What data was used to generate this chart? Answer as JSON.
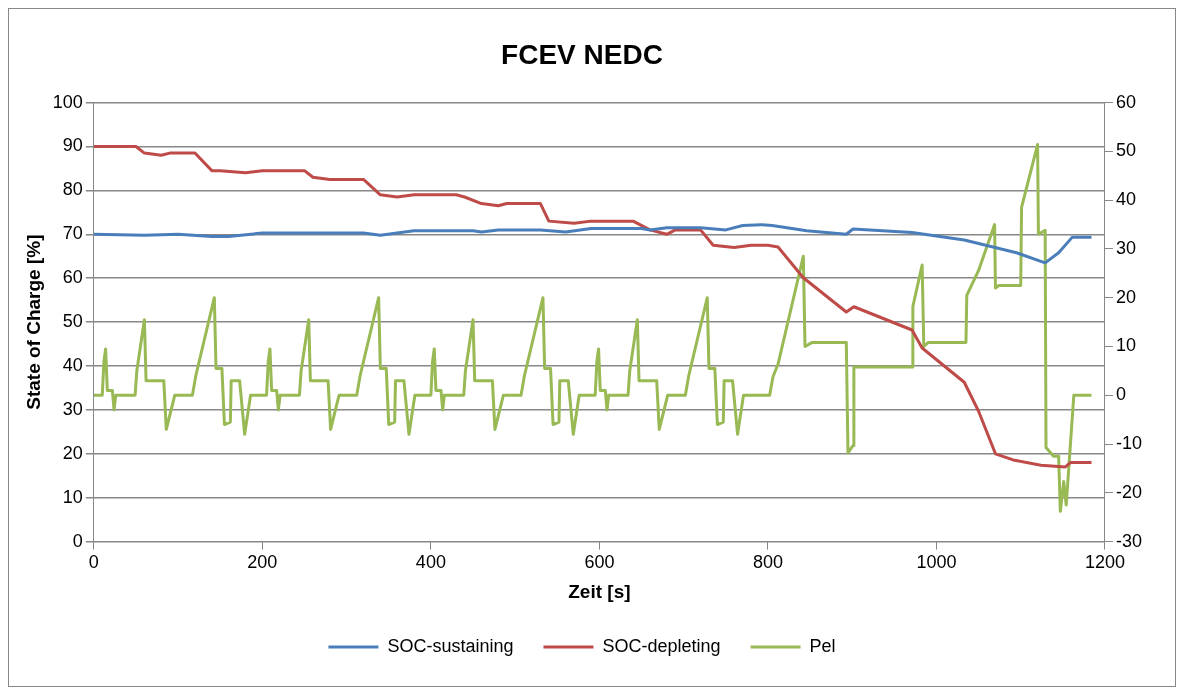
{
  "chart_data": {
    "type": "line",
    "title": "FCEV NEDC",
    "xlabel": "Zeit [s]",
    "ylabel": "State of Charge [%]",
    "xlim": [
      0,
      1200
    ],
    "xticks": [
      0,
      200,
      400,
      600,
      800,
      1000,
      1200
    ],
    "ylim": [
      0,
      100
    ],
    "yticks": [
      0,
      10,
      20,
      30,
      40,
      50,
      60,
      70,
      80,
      90,
      100
    ],
    "y2lim": [
      -30,
      60
    ],
    "y2ticks": [
      -30,
      -20,
      -10,
      0,
      10,
      20,
      30,
      40,
      50,
      60
    ],
    "grid": "y",
    "legend": "bottom",
    "marker": "none",
    "line_style": "solid",
    "series": [
      {
        "name": "SOC-sustaining",
        "color": "#4a7ebb",
        "x": [
          0,
          60,
          100,
          140,
          160,
          200,
          320,
          340,
          380,
          450,
          460,
          480,
          530,
          560,
          590,
          650,
          660,
          680,
          720,
          750,
          770,
          792,
          805,
          846,
          893,
          901,
          971,
          1033,
          1095,
          1129,
          1145,
          1161,
          1184
        ],
        "values": [
          70,
          69.8,
          70,
          69.5,
          69.5,
          70.3,
          70.3,
          69.8,
          70.8,
          70.8,
          70.5,
          71,
          71,
          70.5,
          71.3,
          71.3,
          71,
          71.5,
          71.5,
          71,
          72,
          72.2,
          72,
          70.8,
          70,
          71.2,
          70.4,
          68.7,
          65.8,
          63.5,
          65.8,
          69.3,
          69.3
        ]
      },
      {
        "name": "SOC-depleting",
        "color": "#be4b48",
        "x": [
          0,
          50,
          60,
          80,
          90,
          120,
          140,
          150,
          180,
          200,
          250,
          260,
          280,
          320,
          340,
          360,
          380,
          430,
          440,
          460,
          480,
          490,
          530,
          540,
          570,
          590,
          640,
          660,
          680,
          690,
          720,
          735,
          760,
          780,
          800,
          812,
          842,
          893,
          902,
          971,
          983,
          1033,
          1050,
          1070,
          1091,
          1124,
          1153,
          1159,
          1184
        ],
        "values": [
          90,
          90,
          88.5,
          88,
          88.5,
          88.5,
          84.5,
          84.5,
          84,
          84.5,
          84.5,
          83,
          82.5,
          82.5,
          79,
          78.5,
          79,
          79,
          78.5,
          77,
          76.5,
          77,
          77,
          73,
          72.5,
          73,
          73,
          71,
          70,
          71,
          71,
          67.5,
          67,
          67.5,
          67.5,
          67.1,
          60.1,
          52.3,
          53.5,
          48.2,
          44.1,
          36.3,
          29.7,
          20,
          18.6,
          17.4,
          17,
          18,
          18
        ]
      },
      {
        "name": "Pel",
        "color": "#98b954",
        "axis": "y2",
        "x": [
          0,
          10,
          12,
          14,
          16,
          22,
          24,
          26,
          49,
          51,
          60,
          62,
          83,
          86,
          96,
          117,
          121,
          143,
          145,
          152,
          155,
          162,
          163,
          173,
          179,
          186,
          195,
          205,
          207,
          209,
          211,
          217,
          219,
          221,
          244,
          246,
          255,
          257,
          278,
          281,
          291,
          312,
          316,
          338,
          340,
          347,
          350,
          357,
          358,
          368,
          374,
          381,
          390,
          400,
          402,
          404,
          406,
          412,
          414,
          416,
          439,
          441,
          450,
          452,
          473,
          476,
          486,
          507,
          511,
          533,
          535,
          542,
          545,
          552,
          553,
          563,
          569,
          576,
          585,
          595,
          597,
          599,
          601,
          607,
          609,
          611,
          634,
          636,
          645,
          647,
          668,
          671,
          681,
          702,
          706,
          728,
          730,
          737,
          740,
          747,
          748,
          758,
          764,
          771,
          802,
          806,
          812,
          842,
          844,
          852,
          893,
          895,
          901,
          902,
          971,
          972,
          983,
          985,
          990,
          1035,
          1036,
          1050,
          1069,
          1070,
          1074,
          1100,
          1101,
          1120,
          1121,
          1129,
          1130,
          1139,
          1145,
          1147,
          1151,
          1154,
          1163,
          1184
        ],
        "values": [
          0,
          0,
          7,
          9.5,
          1,
          1,
          -3,
          0,
          0,
          5,
          15.5,
          3,
          3,
          -7,
          0,
          0,
          4,
          20,
          5.5,
          5.5,
          -6,
          -5.5,
          3,
          3,
          -8,
          0,
          0,
          0,
          7,
          9.5,
          1,
          1,
          -3,
          0,
          0,
          5,
          15.5,
          3,
          3,
          -7,
          0,
          0,
          4,
          20,
          5.5,
          5.5,
          -6,
          -5.5,
          3,
          3,
          -8,
          0,
          0,
          0,
          7,
          9.5,
          1,
          1,
          -3,
          0,
          0,
          5,
          15.5,
          3,
          3,
          -7,
          0,
          0,
          4,
          20,
          5.5,
          5.5,
          -6,
          -5.5,
          3,
          3,
          -8,
          0,
          0,
          0,
          7,
          9.5,
          1,
          1,
          -3,
          0,
          0,
          5,
          15.5,
          3,
          3,
          -7,
          0,
          0,
          4,
          20,
          5.5,
          5.5,
          -6,
          -5.5,
          3,
          3,
          -8,
          0,
          0,
          3.8,
          6.4,
          28.5,
          10,
          10.8,
          10.8,
          -11.8,
          -10.3,
          5.8,
          5.8,
          18.2,
          26.7,
          10,
          10.8,
          10.8,
          20.5,
          25.6,
          35,
          22,
          22.5,
          22.5,
          38.5,
          51.4,
          33,
          33.8,
          -10.7,
          -12.5,
          -12.5,
          -23.8,
          -17.7,
          -22.5,
          0,
          0
        ]
      }
    ]
  }
}
